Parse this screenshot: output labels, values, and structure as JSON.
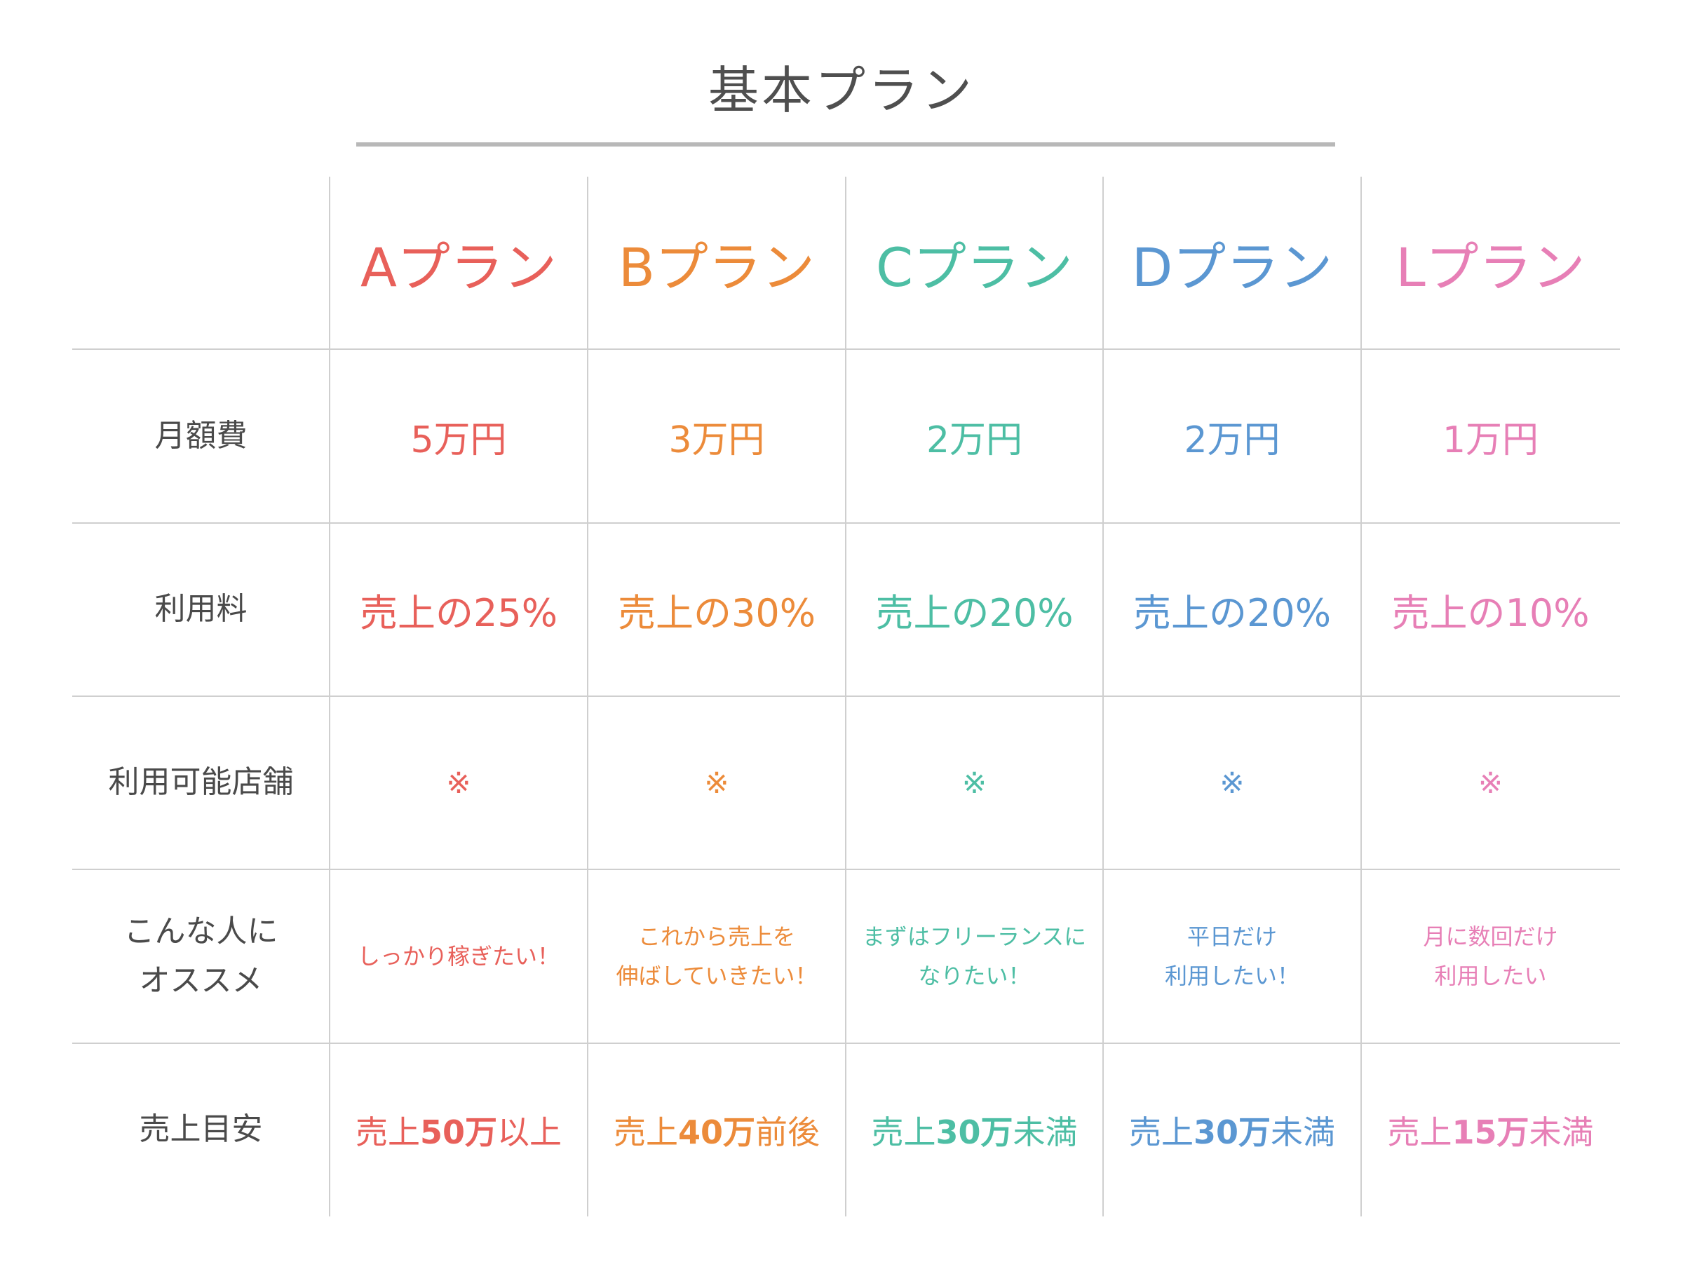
{
  "title": "基本プラン",
  "colors": {
    "A": "#e8605a",
    "B": "#ec8b3a",
    "C": "#4dbea4",
    "D": "#5b97d2",
    "L": "#e77fb6"
  },
  "row_headers": {
    "monthly_fee": "月額費",
    "usage_fee": "利用料",
    "stores": "利用可能店舗",
    "recommend_line1": "こんな人に",
    "recommend_line2": "オススメ",
    "sales_target": "売上目安"
  },
  "plans": [
    {
      "name": "Aプラン",
      "monthly_fee": "5万円",
      "usage_fee": "売上の25%",
      "stores": "※",
      "recommend_line1": "しっかり稼ぎたい！",
      "recommend_line2": "",
      "sales_prefix": "売上",
      "sales_amount": "50万",
      "sales_suffix": "以上"
    },
    {
      "name": "Bプラン",
      "monthly_fee": "3万円",
      "usage_fee": "売上の30%",
      "stores": "※",
      "recommend_line1": "これから売上を",
      "recommend_line2": "伸ばしていきたい！",
      "sales_prefix": "売上",
      "sales_amount": "40万",
      "sales_suffix": "前後"
    },
    {
      "name": "Cプラン",
      "monthly_fee": "2万円",
      "usage_fee": "売上の20%",
      "stores": "※",
      "recommend_line1": "まずはフリーランスに",
      "recommend_line2": "なりたい！",
      "sales_prefix": "売上",
      "sales_amount": "30万",
      "sales_suffix": "未満"
    },
    {
      "name": "Dプラン",
      "monthly_fee": "2万円",
      "usage_fee": "売上の20%",
      "stores": "※",
      "recommend_line1": "平日だけ",
      "recommend_line2": "利用したい！",
      "sales_prefix": "売上",
      "sales_amount": "30万",
      "sales_suffix": "未満"
    },
    {
      "name": "Lプラン",
      "monthly_fee": "1万円",
      "usage_fee": "売上の10%",
      "stores": "※",
      "recommend_line1": "月に数回だけ",
      "recommend_line2": "利用したい",
      "sales_prefix": "売上",
      "sales_amount": "15万",
      "sales_suffix": "未満"
    }
  ]
}
